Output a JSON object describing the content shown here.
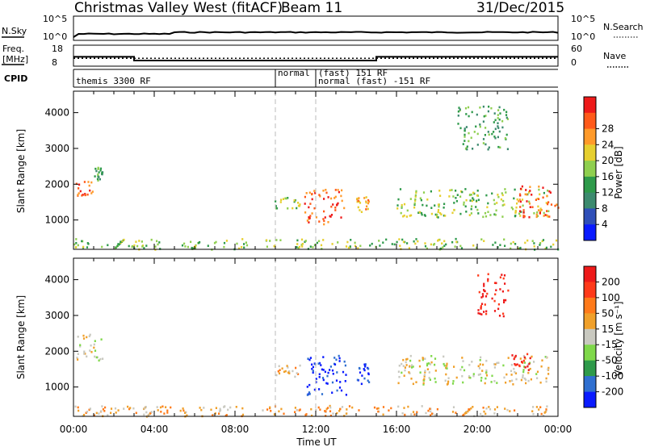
{
  "header": {
    "radar": "Christmas Valley West (fitACF)",
    "beam": "Beam 11",
    "date": "31/Dec/2015"
  },
  "status_panels": {
    "nsky_label": "N.Sky",
    "nsky_ticks": [
      "10^5",
      "10^0"
    ],
    "nsearch_label": "N.Search",
    "nsearch_ticks": [
      "10^5",
      "10^0"
    ],
    "freq_label": [
      "Freq.",
      "[MHz]"
    ],
    "freq_ticks": [
      "18",
      "8"
    ],
    "nave_label": "Nave",
    "nave_ticks": [
      "60",
      "0"
    ],
    "cpid_label": "CPID",
    "cpid_segments": [
      {
        "name": "themis 3300 RF",
        "start_hour": 0.0,
        "end_hour": 10.0
      },
      {
        "name": "normal",
        "start_hour": 10.0,
        "end_hour": 12.0
      },
      {
        "name": "(fast) 151 RF",
        "start_hour": 12.0,
        "end_hour": 24.0
      },
      {
        "name": "normal (fast) -151 RF",
        "start_hour": 12.0,
        "end_hour": 24.0
      }
    ],
    "freq_steps_mhz": [
      [
        0.0,
        12.4
      ],
      [
        3.0,
        10.5
      ],
      [
        15.0,
        12.4
      ],
      [
        24.0,
        12.4
      ]
    ],
    "nave_level": 22
  },
  "chart_data": [
    {
      "type": "heatmap",
      "name": "Power",
      "xlabel": "",
      "ylabel": "Slant Range [km]",
      "xlim": [
        0,
        24
      ],
      "ylim": [
        180,
        4600
      ],
      "yticks": [
        1000,
        2000,
        3000,
        4000
      ],
      "colorbar": {
        "label": "Power [dB]",
        "ticks": [
          "4",
          "8",
          "12",
          "16",
          "20",
          "24",
          "28"
        ],
        "colors": [
          "#0a1bff",
          "#2f4fb8",
          "#3c8a6e",
          "#2e9a4a",
          "#8fcf4f",
          "#e6cf2f",
          "#ff9a2a",
          "#ff5a1a",
          "#ee1a1a"
        ]
      },
      "regions": [
        {
          "t0": 0.1,
          "t1": 1.0,
          "r0": 1700,
          "r1": 2150,
          "level": 7
        },
        {
          "t0": 1.0,
          "t1": 1.4,
          "r0": 2100,
          "r1": 2500,
          "level": 3
        },
        {
          "t0": 0.0,
          "t1": 24.0,
          "r0": 200,
          "r1": 500,
          "level": 4
        },
        {
          "t0": 9.9,
          "t1": 11.2,
          "r0": 1350,
          "r1": 1650,
          "level": 4
        },
        {
          "t0": 11.4,
          "t1": 13.4,
          "r0": 900,
          "r1": 1900,
          "level": 7
        },
        {
          "t0": 14.0,
          "t1": 14.6,
          "r0": 1250,
          "r1": 1700,
          "level": 6
        },
        {
          "t0": 16.0,
          "t1": 23.5,
          "r0": 1100,
          "r1": 1900,
          "level": 4
        },
        {
          "t0": 22.0,
          "t1": 24.0,
          "r0": 1100,
          "r1": 2000,
          "level": 7
        },
        {
          "t0": 19.0,
          "t1": 21.5,
          "r0": 3000,
          "r1": 4200,
          "level": 3
        }
      ]
    },
    {
      "type": "heatmap",
      "name": "Velocity",
      "xlabel": "Time UT",
      "ylabel": "Slant Range [km]",
      "xlim": [
        0,
        24
      ],
      "ylim": [
        180,
        4600
      ],
      "xticks": [
        "00:00",
        "04:00",
        "08:00",
        "12:00",
        "16:00",
        "20:00",
        "00:00"
      ],
      "yticks": [
        1000,
        2000,
        3000,
        4000
      ],
      "colorbar": {
        "label": "Velocity [m s⁻¹]",
        "ticks": [
          "200",
          "100",
          "50",
          "15",
          "-15",
          "-50",
          "-100",
          "-200"
        ],
        "colors": [
          "#0a1bff",
          "#2f6fd0",
          "#2e9a4a",
          "#7fd84a",
          "#c9c9c0",
          "#f0a02a",
          "#ff7a1a",
          "#ff3a1a",
          "#ee1a1a"
        ]
      },
      "regions": [
        {
          "t0": 0.1,
          "t1": 1.4,
          "r0": 1700,
          "r1": 2500,
          "level": 4
        },
        {
          "t0": 0.0,
          "t1": 24.0,
          "r0": 200,
          "r1": 500,
          "level": 5
        },
        {
          "t0": 9.9,
          "t1": 11.2,
          "r0": 1300,
          "r1": 1650,
          "level": 5
        },
        {
          "t0": 11.5,
          "t1": 13.5,
          "r0": 800,
          "r1": 1900,
          "level": 0
        },
        {
          "t0": 14.0,
          "t1": 14.7,
          "r0": 1100,
          "r1": 1700,
          "level": 0
        },
        {
          "t0": 16.0,
          "t1": 23.5,
          "r0": 1100,
          "r1": 1900,
          "level": 4
        },
        {
          "t0": 21.6,
          "t1": 22.6,
          "r0": 1500,
          "r1": 2050,
          "level": 8
        },
        {
          "t0": 20.0,
          "t1": 21.5,
          "r0": 3000,
          "r1": 4200,
          "level": 8
        }
      ]
    }
  ]
}
